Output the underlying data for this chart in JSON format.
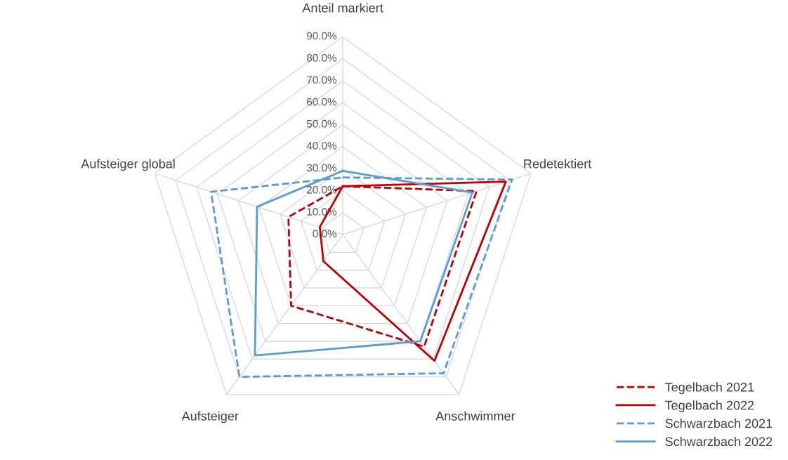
{
  "chart_data": {
    "type": "radar",
    "categories": [
      "Anteil markiert",
      "Redetektiert",
      "Anschwimmer",
      "Aufsteiger",
      "Aufsteiger global"
    ],
    "ylim": [
      0,
      90
    ],
    "yticks": [
      {
        "value": 0,
        "label": "0.0%"
      },
      {
        "value": 10,
        "label": "10.0%"
      },
      {
        "value": 20,
        "label": "20.0%"
      },
      {
        "value": 30,
        "label": "30.0%"
      },
      {
        "value": 40,
        "label": "40.0%"
      },
      {
        "value": 50,
        "label": "50.0%"
      },
      {
        "value": 60,
        "label": "60.0%"
      },
      {
        "value": 70,
        "label": "70.0%"
      },
      {
        "value": 80,
        "label": "80.0%"
      },
      {
        "value": 90,
        "label": "90.0%"
      }
    ],
    "grid": true,
    "legend": "bottom right",
    "series": [
      {
        "name": "Tegelbach 2021",
        "color": "#c00000",
        "line_style": "dashed",
        "values": [
          22,
          64,
          63,
          40,
          26
        ]
      },
      {
        "name": "Tegelbach 2022",
        "color": "#c00000",
        "line_style": "solid",
        "values": [
          22,
          78,
          71,
          15,
          11
        ]
      },
      {
        "name": "Schwarzbach 2021",
        "color": "#5b9bd5",
        "line_style": "dashed",
        "values": [
          26,
          81,
          78,
          80,
          63
        ]
      },
      {
        "name": "Schwarzbach 2022",
        "color": "#5b9bd5",
        "line_style": "solid",
        "values": [
          29,
          62,
          60,
          68,
          41
        ]
      }
    ]
  }
}
